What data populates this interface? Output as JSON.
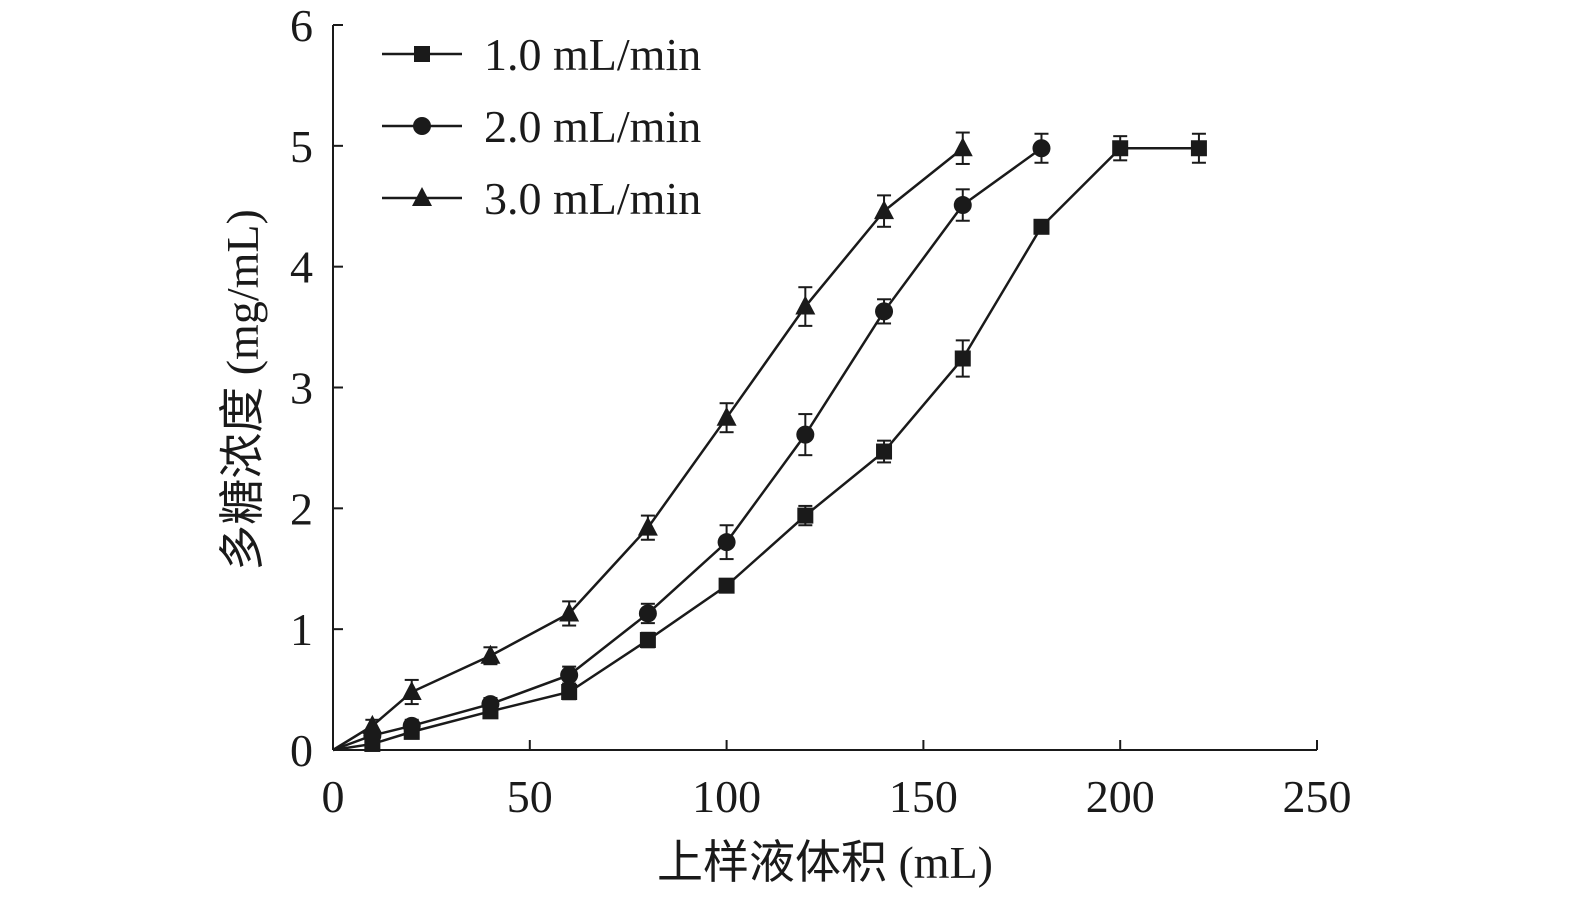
{
  "chart_data": {
    "type": "line",
    "title": "",
    "xlabel": "上样液体积 (mL)",
    "ylabel": "多糖浓度 (mg/mL)",
    "xlim": [
      0,
      250
    ],
    "ylim": [
      0,
      6
    ],
    "xticks": [
      0,
      50,
      100,
      150,
      200,
      250
    ],
    "yticks": [
      0,
      1,
      2,
      3,
      4,
      5,
      6
    ],
    "grid": false,
    "legend_position": "top-left",
    "colors": {
      "line": "#1a1a1a",
      "axis": "#1a1a1a"
    },
    "series": [
      {
        "name": "1.0 mL/min",
        "marker": "square",
        "x": [
          0,
          10,
          20,
          40,
          60,
          80,
          100,
          120,
          140,
          160,
          180,
          200,
          220
        ],
        "y": [
          0,
          0.05,
          0.15,
          0.32,
          0.48,
          0.91,
          1.36,
          1.94,
          2.47,
          3.24,
          4.33,
          4.98,
          4.98
        ],
        "err": [
          0,
          0.03,
          0.05,
          0.05,
          0.06,
          0.06,
          0.05,
          0.08,
          0.09,
          0.15,
          0.05,
          0.1,
          0.12
        ]
      },
      {
        "name": "2.0 mL/min",
        "marker": "circle",
        "x": [
          0,
          10,
          20,
          40,
          60,
          80,
          100,
          120,
          140,
          160,
          180
        ],
        "y": [
          0,
          0.12,
          0.2,
          0.38,
          0.62,
          1.13,
          1.72,
          2.61,
          3.63,
          4.51,
          4.98
        ],
        "err": [
          0,
          0.04,
          0.05,
          0.05,
          0.07,
          0.08,
          0.14,
          0.17,
          0.1,
          0.13,
          0.12
        ]
      },
      {
        "name": "3.0 mL/min",
        "marker": "triangle",
        "x": [
          0,
          10,
          20,
          40,
          60,
          80,
          100,
          120,
          140,
          160
        ],
        "y": [
          0,
          0.2,
          0.48,
          0.78,
          1.13,
          1.84,
          2.75,
          3.67,
          4.46,
          4.98
        ],
        "err": [
          0,
          0.05,
          0.1,
          0.07,
          0.1,
          0.1,
          0.12,
          0.16,
          0.13,
          0.13
        ]
      }
    ]
  }
}
